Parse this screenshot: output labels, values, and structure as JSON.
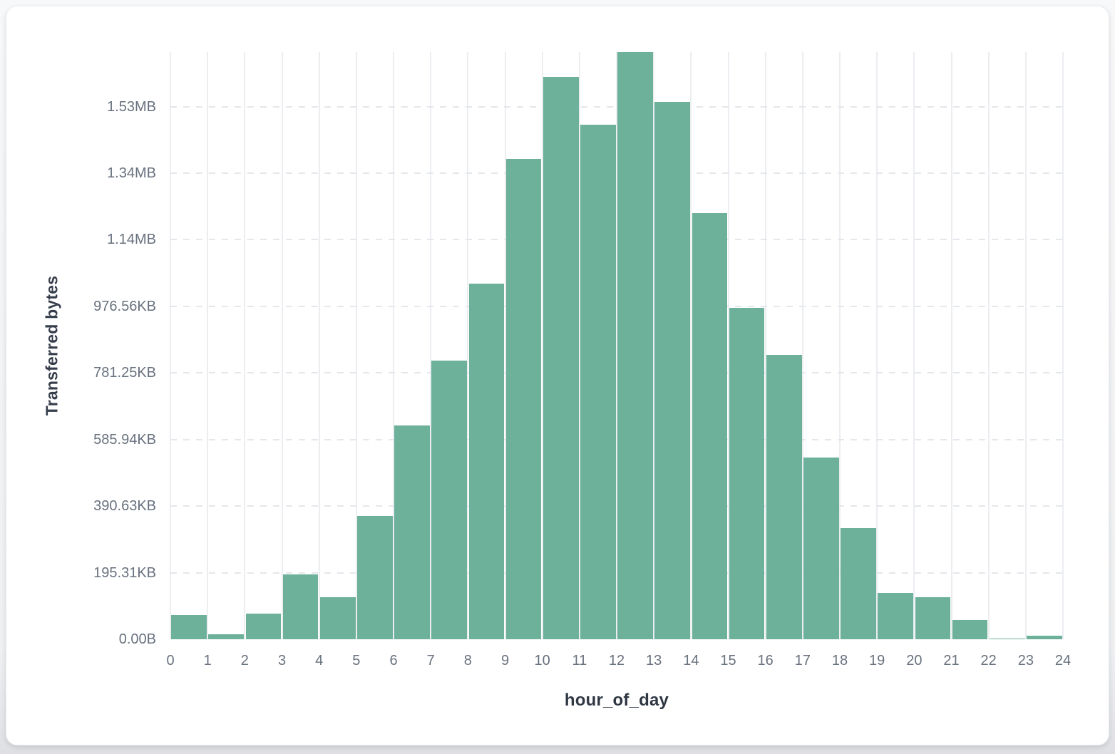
{
  "chart_data": {
    "type": "bar",
    "title": "",
    "xlabel": "hour_of_day",
    "ylabel": "Transferred bytes",
    "categories": [
      0,
      1,
      2,
      3,
      4,
      5,
      6,
      7,
      8,
      9,
      10,
      11,
      12,
      13,
      14,
      15,
      16,
      17,
      18,
      19,
      20,
      21,
      22,
      23
    ],
    "values": [
      73000,
      14500,
      77500,
      195300,
      126000,
      370000,
      643000,
      838000,
      1068000,
      1442000,
      1690000,
      1545000,
      1764000,
      1614000,
      1281000,
      996000,
      855000,
      546000,
      333000,
      139000,
      126500,
      57000,
      3000,
      11500
    ],
    "values_unit": "bytes",
    "x_ticks": [
      "0",
      "1",
      "2",
      "3",
      "4",
      "5",
      "6",
      "7",
      "8",
      "9",
      "10",
      "11",
      "12",
      "13",
      "14",
      "15",
      "16",
      "17",
      "18",
      "19",
      "20",
      "21",
      "22",
      "23",
      "24"
    ],
    "y_ticks": [
      {
        "label": "0.00B",
        "bytes": 0
      },
      {
        "label": "195.31KB",
        "bytes": 200000
      },
      {
        "label": "390.63KB",
        "bytes": 400000
      },
      {
        "label": "585.94KB",
        "bytes": 600000
      },
      {
        "label": "781.25KB",
        "bytes": 800000
      },
      {
        "label": "976.56KB",
        "bytes": 1000000
      },
      {
        "label": "1.14MB",
        "bytes": 1200000
      },
      {
        "label": "1.34MB",
        "bytes": 1400000
      },
      {
        "label": "1.53MB",
        "bytes": 1600000
      }
    ],
    "xlim": [
      0,
      24
    ],
    "ylim_bytes": [
      0,
      1764000
    ],
    "legend": "none",
    "grid": {
      "vertical": "solid",
      "horizontal": "dashed"
    },
    "colors": {
      "bar": "#6db19b",
      "grid_vertical": "#ebedf1",
      "grid_horizontal": "#e4e7eb",
      "tick_text": "#68717e",
      "axis_title_text": "#2f3743",
      "card_background": "#ffffff"
    }
  }
}
